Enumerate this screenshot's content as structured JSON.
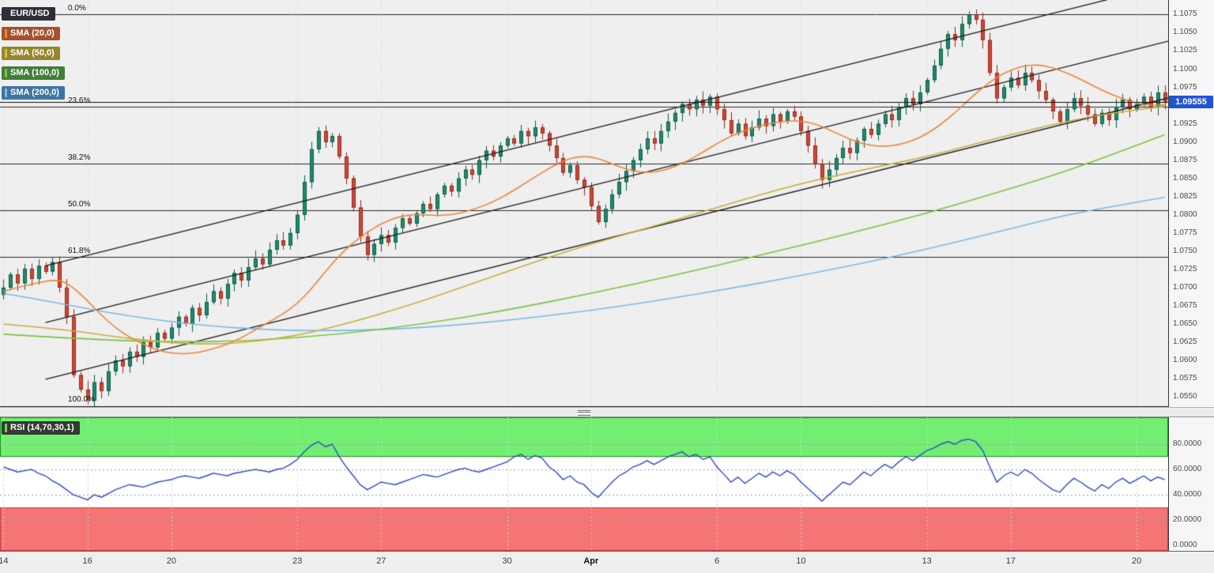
{
  "legend": {
    "items": [
      {
        "label": "EUR/USD",
        "bg": "#2e2e38",
        "stripe": "#2e2e38"
      },
      {
        "label": "SMA (20,0)",
        "bg": "#a7502c",
        "stripe": "#ef8536"
      },
      {
        "label": "SMA (50,0)",
        "bg": "#94872b",
        "stripe": "#d1bf3a"
      },
      {
        "label": "SMA (100,0)",
        "bg": "#417f3a",
        "stripe": "#7dc242"
      },
      {
        "label": "SMA (200,0)",
        "bg": "#3f74a0",
        "stripe": "#79bbe8"
      }
    ]
  },
  "chart_data": [
    {
      "id": "price",
      "type": "candlestick",
      "symbol": "EUR/USD",
      "y_domain": [
        1.0536,
        1.1095
      ],
      "price_axis_ticks": [
        "1.1075",
        "1.1050",
        "1.1025",
        "1.1000",
        "1.0975",
        "1.0925",
        "1.0900",
        "1.0875",
        "1.0850",
        "1.0825",
        "1.0800",
        "1.0775",
        "1.0750",
        "1.0725",
        "1.0700",
        "1.0675",
        "1.0650",
        "1.0625",
        "1.0600",
        "1.0575",
        "1.0550"
      ],
      "time_ticks": [
        {
          "label": "14",
          "i": 0
        },
        {
          "label": "16",
          "i": 12
        },
        {
          "label": "20",
          "i": 24
        },
        {
          "label": "23",
          "i": 42
        },
        {
          "label": "27",
          "i": 54
        },
        {
          "label": "30",
          "i": 72
        },
        {
          "label": "Apr",
          "i": 84
        },
        {
          "label": "6",
          "i": 102
        },
        {
          "label": "10",
          "i": 114
        },
        {
          "label": "13",
          "i": 132
        },
        {
          "label": "17",
          "i": 144
        },
        {
          "label": "20",
          "i": 162
        }
      ],
      "first_open": 1.069,
      "closes": [
        1.07,
        1.0718,
        1.0706,
        1.0726,
        1.0712,
        1.073,
        1.0722,
        1.0735,
        1.07,
        1.066,
        1.058,
        1.056,
        1.0545,
        1.057,
        1.0558,
        1.0585,
        1.06,
        1.0592,
        1.0612,
        1.0605,
        1.0625,
        1.0618,
        1.0638,
        1.063,
        1.0645,
        1.066,
        1.065,
        1.0672,
        1.0662,
        1.068,
        1.0695,
        1.0685,
        1.0705,
        1.072,
        1.071,
        1.0728,
        1.074,
        1.0732,
        1.0752,
        1.0765,
        1.0758,
        1.0775,
        1.08,
        1.0845,
        1.089,
        1.0915,
        1.09,
        1.0908,
        1.088,
        1.085,
        1.081,
        1.077,
        1.0745,
        1.076,
        1.0772,
        1.0762,
        1.0782,
        1.0795,
        1.0788,
        1.0802,
        1.0815,
        1.0808,
        1.0828,
        1.084,
        1.0832,
        1.085,
        1.0862,
        1.0855,
        1.0875,
        1.0888,
        1.088,
        1.0895,
        1.0905,
        1.0898,
        1.0915,
        1.0908,
        1.092,
        1.0912,
        1.0895,
        1.0878,
        1.0858,
        1.0868,
        1.0848,
        1.0838,
        1.0812,
        1.079,
        1.0808,
        1.0828,
        1.0845,
        1.086,
        1.0875,
        1.089,
        1.0905,
        1.0898,
        1.0915,
        1.0928,
        1.094,
        1.0952,
        1.0945,
        1.0958,
        1.095,
        1.0962,
        1.0945,
        1.093,
        1.0912,
        1.0925,
        1.0908,
        1.092,
        1.0932,
        1.0922,
        1.0938,
        1.0928,
        1.0942,
        1.0935,
        1.0915,
        1.0895,
        1.087,
        1.0848,
        1.0862,
        1.0878,
        1.0892,
        1.0885,
        1.0902,
        1.0918,
        1.091,
        1.0925,
        1.0938,
        1.093,
        1.0948,
        1.096,
        1.0952,
        1.0968,
        1.0985,
        1.1005,
        1.1028,
        1.1048,
        1.104,
        1.1062,
        1.1075,
        1.1068,
        1.104,
        1.0995,
        1.096,
        1.0975,
        1.0988,
        1.0978,
        1.0995,
        1.0985,
        1.097,
        1.0958,
        1.0942,
        1.0928,
        1.0945,
        1.096,
        1.095,
        1.0938,
        1.0925,
        1.094,
        1.093,
        1.0948,
        1.0958,
        1.0945,
        1.0952,
        1.0962,
        1.0948,
        1.0968,
        1.09555
      ],
      "fib": {
        "high": 1.1076,
        "low": 1.0536,
        "levels": [
          {
            "label": "0.0%",
            "value": 1.1076
          },
          {
            "label": "23.6%",
            "value": 1.0949
          },
          {
            "label": "38.2%",
            "value": 1.087
          },
          {
            "label": "50.0%",
            "value": 1.0806
          },
          {
            "label": "61.8%",
            "value": 1.0742
          },
          {
            "label": "100.0%",
            "value": 1.0536
          }
        ]
      },
      "channel_lines": [
        {
          "i0": 6,
          "p0": 1.073,
          "slope": 0.00024
        },
        {
          "i0": 6,
          "p0": 1.0652,
          "slope": 0.00024
        },
        {
          "i0": 6,
          "p0": 1.0574,
          "slope": 0.00024
        }
      ],
      "sma": {
        "s20": [
          [
            0,
            1.0695
          ],
          [
            4,
            1.0705
          ],
          [
            8,
            1.0712
          ],
          [
            10,
            1.07
          ],
          [
            12,
            1.0682
          ],
          [
            14,
            1.0662
          ],
          [
            16,
            1.0645
          ],
          [
            18,
            1.0632
          ],
          [
            20,
            1.0622
          ],
          [
            22,
            1.0614
          ],
          [
            24,
            1.061
          ],
          [
            26,
            1.0609
          ],
          [
            28,
            1.0611
          ],
          [
            30,
            1.0616
          ],
          [
            32,
            1.0622
          ],
          [
            34,
            1.0631
          ],
          [
            36,
            1.0642
          ],
          [
            38,
            1.0653
          ],
          [
            40,
            1.0664
          ],
          [
            42,
            1.0678
          ],
          [
            44,
            1.0698
          ],
          [
            46,
            1.0722
          ],
          [
            48,
            1.0744
          ],
          [
            50,
            1.0762
          ],
          [
            52,
            1.0776
          ],
          [
            54,
            1.0788
          ],
          [
            56,
            1.0796
          ],
          [
            58,
            1.08
          ],
          [
            60,
            1.08
          ],
          [
            62,
            1.0799
          ],
          [
            64,
            1.08
          ],
          [
            66,
            1.0804
          ],
          [
            68,
            1.081
          ],
          [
            70,
            1.0818
          ],
          [
            72,
            1.0828
          ],
          [
            74,
            1.084
          ],
          [
            76,
            1.0852
          ],
          [
            78,
            1.0864
          ],
          [
            80,
            1.0874
          ],
          [
            82,
            1.088
          ],
          [
            84,
            1.088
          ],
          [
            86,
            1.0874
          ],
          [
            88,
            1.0866
          ],
          [
            90,
            1.086
          ],
          [
            92,
            1.0858
          ],
          [
            94,
            1.086
          ],
          [
            96,
            1.0866
          ],
          [
            98,
            1.0875
          ],
          [
            100,
            1.0886
          ],
          [
            102,
            1.0898
          ],
          [
            104,
            1.0908
          ],
          [
            106,
            1.0916
          ],
          [
            108,
            1.0922
          ],
          [
            110,
            1.0926
          ],
          [
            112,
            1.0929
          ],
          [
            114,
            1.0929
          ],
          [
            116,
            1.0925
          ],
          [
            118,
            1.0917
          ],
          [
            120,
            1.0908
          ],
          [
            122,
            1.09
          ],
          [
            124,
            1.0895
          ],
          [
            126,
            1.0894
          ],
          [
            128,
            1.0896
          ],
          [
            130,
            1.0902
          ],
          [
            132,
            1.0911
          ],
          [
            134,
            1.0924
          ],
          [
            136,
            1.094
          ],
          [
            138,
            1.0958
          ],
          [
            140,
            1.0975
          ],
          [
            142,
            1.0989
          ],
          [
            144,
            1.0999
          ],
          [
            146,
            1.1005
          ],
          [
            148,
            1.1006
          ],
          [
            150,
            1.1002
          ],
          [
            152,
            1.0995
          ],
          [
            154,
            1.0986
          ],
          [
            156,
            1.0976
          ],
          [
            158,
            1.0967
          ],
          [
            160,
            1.0959
          ],
          [
            162,
            1.0953
          ],
          [
            164,
            1.095
          ],
          [
            166,
            1.0951
          ]
        ],
        "s50": [
          [
            0,
            1.065
          ],
          [
            6,
            1.0645
          ],
          [
            12,
            1.0638
          ],
          [
            18,
            1.063
          ],
          [
            24,
            1.0624
          ],
          [
            30,
            1.0622
          ],
          [
            36,
            1.0626
          ],
          [
            42,
            1.0634
          ],
          [
            48,
            1.0648
          ],
          [
            54,
            1.0664
          ],
          [
            60,
            1.0682
          ],
          [
            66,
            1.0702
          ],
          [
            72,
            1.0722
          ],
          [
            78,
            1.0742
          ],
          [
            84,
            1.076
          ],
          [
            90,
            1.0776
          ],
          [
            96,
            1.0793
          ],
          [
            102,
            1.081
          ],
          [
            108,
            1.0827
          ],
          [
            114,
            1.0843
          ],
          [
            120,
            1.0856
          ],
          [
            126,
            1.0868
          ],
          [
            132,
            1.088
          ],
          [
            138,
            1.0895
          ],
          [
            144,
            1.091
          ],
          [
            150,
            1.0924
          ],
          [
            156,
            1.0936
          ],
          [
            162,
            1.0944
          ],
          [
            166,
            1.0949
          ]
        ],
        "s100": [
          [
            0,
            1.0636
          ],
          [
            12,
            1.0629
          ],
          [
            24,
            1.0625
          ],
          [
            36,
            1.0627
          ],
          [
            48,
            1.0636
          ],
          [
            60,
            1.065
          ],
          [
            72,
            1.0669
          ],
          [
            84,
            1.0692
          ],
          [
            96,
            1.0717
          ],
          [
            108,
            1.0744
          ],
          [
            120,
            1.0772
          ],
          [
            132,
            1.0802
          ],
          [
            144,
            1.0836
          ],
          [
            152,
            1.086
          ],
          [
            160,
            1.0888
          ],
          [
            166,
            1.091
          ]
        ],
        "s200": [
          [
            0,
            1.0692
          ],
          [
            6,
            1.0682
          ],
          [
            12,
            1.0671
          ],
          [
            18,
            1.0661
          ],
          [
            24,
            1.0653
          ],
          [
            30,
            1.0647
          ],
          [
            36,
            1.0643
          ],
          [
            42,
            1.0641
          ],
          [
            48,
            1.0641
          ],
          [
            56,
            1.0643
          ],
          [
            64,
            1.0648
          ],
          [
            72,
            1.0655
          ],
          [
            80,
            1.0664
          ],
          [
            88,
            1.0674
          ],
          [
            96,
            1.0686
          ],
          [
            104,
            1.0699
          ],
          [
            112,
            1.0713
          ],
          [
            120,
            1.0728
          ],
          [
            128,
            1.0744
          ],
          [
            136,
            1.0762
          ],
          [
            144,
            1.0781
          ],
          [
            152,
            1.08
          ],
          [
            160,
            1.0814
          ],
          [
            166,
            1.0824
          ]
        ]
      },
      "last_price": 1.09555,
      "last_price_label": "1.09555",
      "colors": {
        "bg": "#efefef",
        "grid": "#d7d7d7",
        "up": "#1e8a6e",
        "up_border": "#0e5c49",
        "down": "#d14733",
        "down_border": "#93291e",
        "sma20": "#ef8536",
        "sma50": "#c3b139",
        "sma100": "#7dc242",
        "sma200": "#79bbe8",
        "channel": "#1c1c1c",
        "fib": "#2a2a2a",
        "last_price_line": "#111111",
        "badge": "#2153d4"
      }
    },
    {
      "id": "rsi",
      "type": "line",
      "label": "RSI (14,70,30,1)",
      "badge_bg": "#323a32",
      "stripe": "#6fcf5f",
      "line_color": "#2d49c9",
      "y_domain": [
        0,
        100
      ],
      "axis_ticks": [
        "80.0000",
        "60.0000",
        "40.0000",
        "20.0000",
        "0.0000"
      ],
      "overbought_zone": {
        "from": 70,
        "to": 100,
        "fill": "#72ef72",
        "edge": "#129612"
      },
      "oversold_zone": {
        "from": 0,
        "to": 30,
        "fill": "#f57474",
        "edge": "#c03a3a"
      },
      "values": [
        62,
        60,
        58,
        59,
        60,
        57,
        55,
        51,
        48,
        44,
        40,
        38,
        36,
        40,
        38,
        41,
        44,
        46,
        48,
        47,
        46,
        48,
        50,
        51,
        52,
        54,
        55,
        54,
        53,
        55,
        57,
        56,
        55,
        57,
        58,
        59,
        60,
        59,
        58,
        60,
        61,
        64,
        68,
        74,
        79,
        82,
        78,
        80,
        70,
        62,
        55,
        48,
        44,
        47,
        50,
        49,
        48,
        50,
        52,
        54,
        56,
        55,
        54,
        56,
        58,
        60,
        61,
        59,
        58,
        60,
        62,
        64,
        66,
        70,
        72,
        68,
        71,
        69,
        62,
        58,
        52,
        55,
        50,
        48,
        42,
        38,
        44,
        50,
        55,
        58,
        62,
        64,
        67,
        64,
        67,
        70,
        72,
        74,
        70,
        72,
        68,
        70,
        62,
        56,
        50,
        54,
        49,
        53,
        57,
        54,
        58,
        55,
        59,
        56,
        50,
        45,
        40,
        35,
        40,
        45,
        50,
        48,
        53,
        58,
        55,
        60,
        64,
        61,
        66,
        70,
        67,
        71,
        75,
        77,
        80,
        82,
        80,
        83,
        84,
        82,
        75,
        62,
        50,
        55,
        58,
        55,
        60,
        57,
        52,
        48,
        44,
        42,
        48,
        53,
        50,
        46,
        43,
        48,
        45,
        50,
        53,
        49,
        52,
        55,
        51,
        54,
        52
      ]
    }
  ]
}
